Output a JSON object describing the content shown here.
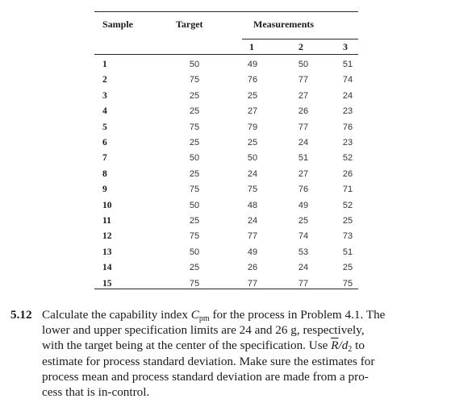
{
  "table": {
    "headers": {
      "sample": "Sample",
      "target": "Target",
      "measurements": "Measurements",
      "m1": "1",
      "m2": "2",
      "m3": "3"
    },
    "rows": [
      {
        "sample": "1",
        "target": "50",
        "m1": "49",
        "m2": "50",
        "m3": "51"
      },
      {
        "sample": "2",
        "target": "75",
        "m1": "76",
        "m2": "77",
        "m3": "74"
      },
      {
        "sample": "3",
        "target": "25",
        "m1": "25",
        "m2": "27",
        "m3": "24"
      },
      {
        "sample": "4",
        "target": "25",
        "m1": "27",
        "m2": "26",
        "m3": "23"
      },
      {
        "sample": "5",
        "target": "75",
        "m1": "79",
        "m2": "77",
        "m3": "76"
      },
      {
        "sample": "6",
        "target": "25",
        "m1": "25",
        "m2": "24",
        "m3": "23"
      },
      {
        "sample": "7",
        "target": "50",
        "m1": "50",
        "m2": "51",
        "m3": "52"
      },
      {
        "sample": "8",
        "target": "25",
        "m1": "24",
        "m2": "27",
        "m3": "26"
      },
      {
        "sample": "9",
        "target": "75",
        "m1": "75",
        "m2": "76",
        "m3": "71"
      },
      {
        "sample": "10",
        "target": "50",
        "m1": "48",
        "m2": "49",
        "m3": "52"
      },
      {
        "sample": "11",
        "target": "25",
        "m1": "24",
        "m2": "25",
        "m3": "25"
      },
      {
        "sample": "12",
        "target": "75",
        "m1": "77",
        "m2": "74",
        "m3": "73"
      },
      {
        "sample": "13",
        "target": "50",
        "m1": "49",
        "m2": "53",
        "m3": "51"
      },
      {
        "sample": "14",
        "target": "25",
        "m1": "26",
        "m2": "24",
        "m3": "25"
      },
      {
        "sample": "15",
        "target": "75",
        "m1": "77",
        "m2": "77",
        "m3": "75"
      }
    ]
  },
  "problem": {
    "number": "5.12",
    "line1_a": "Calculate the capability index ",
    "cpm_c": "C",
    "cpm_sub": "pm",
    "line1_b": " for the process in Problem 4.1. The",
    "line2": "lower and upper specification limits are 24 and 26 g, respectively,",
    "line3_a": "with the target being at the center of the specification. Use ",
    "rbar": "R",
    "slash_d": "/d",
    "d_sub": "2",
    "line3_b": " to",
    "line4": "estimate for process standard deviation. Make sure the estimates for",
    "line5": "process mean and process standard deviation are made from a pro-",
    "line6": "cess that is in-control."
  }
}
